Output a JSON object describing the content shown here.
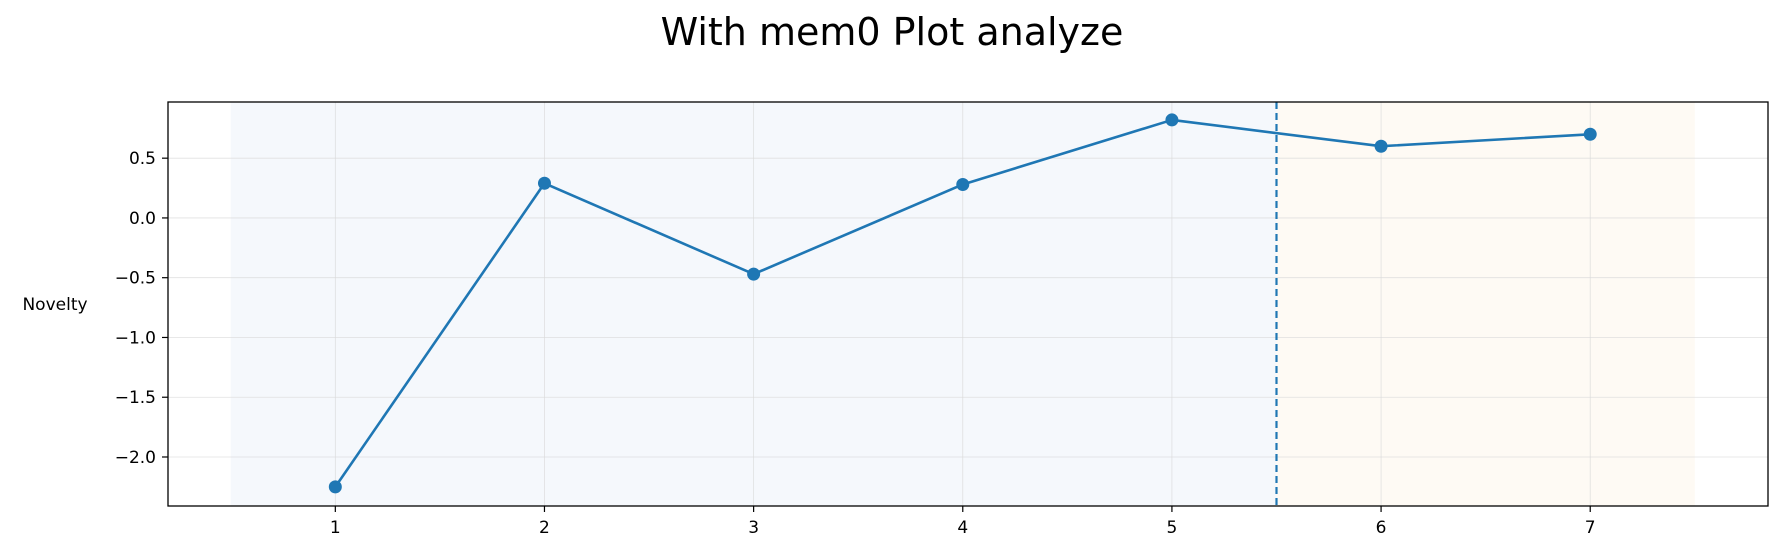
{
  "chart_data": {
    "type": "line",
    "title": "With mem0 Plot analyze",
    "xlabel": "",
    "ylabel": "Novelty",
    "x": [
      1,
      2,
      3,
      4,
      5,
      6,
      7
    ],
    "series": [
      {
        "values": [
          -2.25,
          0.29,
          -0.47,
          0.28,
          0.82,
          0.6,
          0.7
        ]
      }
    ],
    "xlim": [
      0.2,
      7.85
    ],
    "ylim": [
      -2.41,
      0.97
    ],
    "xticks": [
      1,
      2,
      3,
      4,
      5,
      6,
      7
    ],
    "xtick_labels": [
      "1",
      "2",
      "3",
      "4",
      "5",
      "6",
      "7"
    ],
    "yticks": [
      -2.0,
      -1.5,
      -1.0,
      -0.5,
      0.0,
      0.5
    ],
    "ytick_labels": [
      "−2.0",
      "−1.5",
      "−1.0",
      "−0.5",
      "0.0",
      "0.5"
    ],
    "grid": true,
    "legend": "none",
    "regions": [
      {
        "x_start": 0.5,
        "x_end": 5.5,
        "color": "#f5f8fc"
      },
      {
        "x_start": 5.5,
        "x_end": 7.5,
        "color": "#fefaf4"
      }
    ],
    "vline": {
      "x": 5.5,
      "style": "dashed",
      "color": "#1f77b4"
    },
    "line_color": "#1f77b4"
  }
}
